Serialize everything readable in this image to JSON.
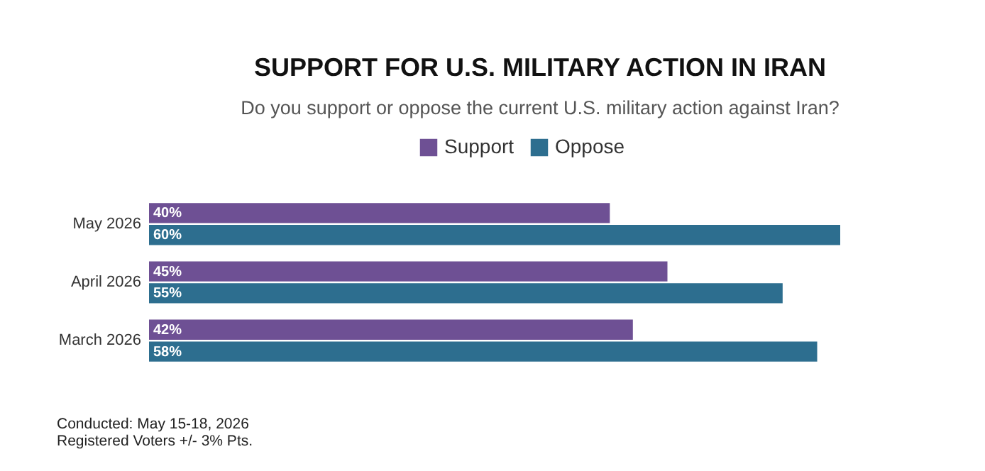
{
  "chart_data": {
    "type": "bar",
    "orientation": "horizontal",
    "title": "SUPPORT FOR U.S. MILITARY ACTION IN IRAN",
    "subtitle": "Do you support or oppose the current U.S. military action against Iran?",
    "categories": [
      "May 2026",
      "April 2026",
      "March 2026"
    ],
    "series": [
      {
        "name": "Support",
        "color": "#6e5094",
        "values": [
          40,
          45,
          42
        ],
        "value_labels": [
          "40%",
          "45%",
          "42%"
        ]
      },
      {
        "name": "Oppose",
        "color": "#2d6e8f",
        "values": [
          60,
          55,
          58
        ],
        "value_labels": [
          "60%",
          "55%",
          "58%"
        ]
      }
    ],
    "legend": "top",
    "annotations": [
      "Conducted: May 15-18, 2026",
      "Registered Voters +/- 3% Pts."
    ]
  }
}
